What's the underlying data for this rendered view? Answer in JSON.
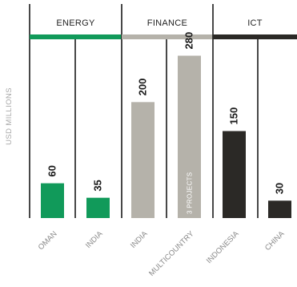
{
  "chart_data": {
    "type": "bar",
    "ylabel": "USD MILLIONS",
    "ylim": [
      0,
      300
    ],
    "grid": false,
    "legend": "none",
    "groups": [
      {
        "name": "ENERGY",
        "color": "#119a5a",
        "categories": [
          "OMAN",
          "INDIA"
        ],
        "values": [
          60,
          35
        ]
      },
      {
        "name": "FINANCE",
        "color": "#b5b2aa",
        "categories": [
          "INDIA",
          "MULTICOUNTRY"
        ],
        "values": [
          200,
          280
        ]
      },
      {
        "name": "ICT",
        "color": "#2b2926",
        "categories": [
          "INDONESIA",
          "CHINA"
        ],
        "values": [
          150,
          30
        ]
      }
    ],
    "annotations": [
      {
        "group": 1,
        "bar": 1,
        "text": "3 PROJECTS"
      }
    ]
  }
}
